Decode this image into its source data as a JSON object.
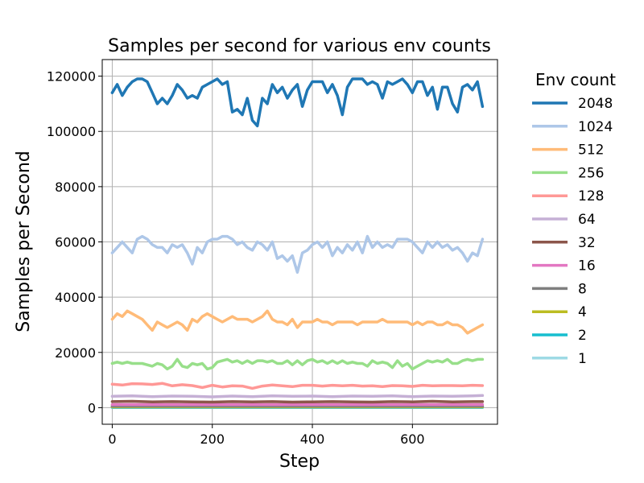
{
  "chart_data": {
    "type": "line",
    "title": "Samples per second for various env counts",
    "xlabel": "Step",
    "ylabel": "Samples per Second",
    "xlim": [
      -20,
      770
    ],
    "ylim": [
      -6000,
      126000
    ],
    "xticks": [
      0,
      200,
      400,
      600
    ],
    "yticks": [
      0,
      20000,
      40000,
      60000,
      80000,
      100000,
      120000
    ],
    "grid": true,
    "legend": {
      "title": "Env count",
      "placement": "outside-right"
    },
    "series": [
      {
        "name": "2048",
        "color": "#1f77b4",
        "x": [
          0,
          10,
          20,
          30,
          40,
          50,
          60,
          70,
          80,
          90,
          100,
          110,
          120,
          130,
          140,
          150,
          160,
          170,
          180,
          190,
          200,
          210,
          220,
          230,
          240,
          250,
          260,
          270,
          280,
          290,
          300,
          310,
          320,
          330,
          340,
          350,
          360,
          370,
          380,
          390,
          400,
          410,
          420,
          430,
          440,
          450,
          460,
          470,
          480,
          490,
          500,
          510,
          520,
          530,
          540,
          550,
          560,
          570,
          580,
          590,
          600,
          610,
          620,
          630,
          640,
          650,
          660,
          670,
          680,
          690,
          700,
          710,
          720,
          730,
          740
        ],
        "y": [
          114000,
          117000,
          113000,
          116000,
          118000,
          119000,
          119000,
          118000,
          114000,
          110000,
          112000,
          110000,
          113000,
          117000,
          115000,
          112000,
          113000,
          112000,
          116000,
          117000,
          118000,
          119000,
          117000,
          118000,
          107000,
          108000,
          106000,
          112000,
          104000,
          102000,
          112000,
          110000,
          117000,
          114000,
          116000,
          112000,
          115000,
          117000,
          109000,
          115000,
          118000,
          118000,
          118000,
          114000,
          117000,
          113000,
          106000,
          116000,
          119000,
          119000,
          119000,
          117000,
          118000,
          117000,
          112000,
          118000,
          117000,
          118000,
          119000,
          117000,
          114000,
          118000,
          118000,
          113000,
          116000,
          108000,
          116000,
          116000,
          110000,
          107000,
          116000,
          117000,
          115000,
          118000,
          109000
        ]
      },
      {
        "name": "1024",
        "color": "#aec7e8",
        "x": [
          0,
          10,
          20,
          30,
          40,
          50,
          60,
          70,
          80,
          90,
          100,
          110,
          120,
          130,
          140,
          150,
          160,
          170,
          180,
          190,
          200,
          210,
          220,
          230,
          240,
          250,
          260,
          270,
          280,
          290,
          300,
          310,
          320,
          330,
          340,
          350,
          360,
          370,
          380,
          390,
          400,
          410,
          420,
          430,
          440,
          450,
          460,
          470,
          480,
          490,
          500,
          510,
          520,
          530,
          540,
          550,
          560,
          570,
          580,
          590,
          600,
          610,
          620,
          630,
          640,
          650,
          660,
          670,
          680,
          690,
          700,
          710,
          720,
          730,
          740
        ],
        "y": [
          56000,
          58000,
          60000,
          58000,
          56000,
          61000,
          62000,
          61000,
          59000,
          58000,
          58000,
          56000,
          59000,
          58000,
          59000,
          56000,
          52000,
          58000,
          56000,
          60000,
          61000,
          61000,
          62000,
          62000,
          61000,
          59000,
          60000,
          58000,
          57000,
          60000,
          59000,
          57000,
          60000,
          54000,
          55000,
          53000,
          55000,
          49000,
          56000,
          57000,
          59000,
          60000,
          58000,
          60000,
          55000,
          58000,
          56000,
          59000,
          57000,
          60000,
          56000,
          62000,
          58000,
          60000,
          58000,
          59000,
          58000,
          61000,
          61000,
          61000,
          60000,
          58000,
          56000,
          60000,
          58000,
          60000,
          58000,
          59000,
          57000,
          58000,
          56000,
          53000,
          56000,
          55000,
          61000
        ]
      },
      {
        "name": "512",
        "color": "#ffbb78",
        "x": [
          0,
          10,
          20,
          30,
          40,
          50,
          60,
          70,
          80,
          90,
          100,
          110,
          120,
          130,
          140,
          150,
          160,
          170,
          180,
          190,
          200,
          210,
          220,
          230,
          240,
          250,
          260,
          270,
          280,
          290,
          300,
          310,
          320,
          330,
          340,
          350,
          360,
          370,
          380,
          390,
          400,
          410,
          420,
          430,
          440,
          450,
          460,
          470,
          480,
          490,
          500,
          510,
          520,
          530,
          540,
          550,
          560,
          570,
          580,
          590,
          600,
          610,
          620,
          630,
          640,
          650,
          660,
          670,
          680,
          690,
          700,
          710,
          720,
          730,
          740
        ],
        "y": [
          32000,
          34000,
          33000,
          35000,
          34000,
          33000,
          32000,
          30000,
          28000,
          31000,
          30000,
          29000,
          30000,
          31000,
          30000,
          28000,
          32000,
          31000,
          33000,
          34000,
          33000,
          32000,
          31000,
          32000,
          33000,
          32000,
          32000,
          32000,
          31000,
          32000,
          33000,
          35000,
          32000,
          31000,
          31000,
          30000,
          32000,
          29000,
          31000,
          31000,
          31000,
          32000,
          31000,
          31000,
          30000,
          31000,
          31000,
          31000,
          31000,
          30000,
          31000,
          31000,
          31000,
          31000,
          32000,
          31000,
          31000,
          31000,
          31000,
          31000,
          30000,
          31000,
          30000,
          31000,
          31000,
          30000,
          30000,
          31000,
          30000,
          30000,
          29000,
          27000,
          28000,
          29000,
          30000
        ]
      },
      {
        "name": "256",
        "color": "#98df8a",
        "x": [
          0,
          10,
          20,
          30,
          40,
          50,
          60,
          70,
          80,
          90,
          100,
          110,
          120,
          130,
          140,
          150,
          160,
          170,
          180,
          190,
          200,
          210,
          220,
          230,
          240,
          250,
          260,
          270,
          280,
          290,
          300,
          310,
          320,
          330,
          340,
          350,
          360,
          370,
          380,
          390,
          400,
          410,
          420,
          430,
          440,
          450,
          460,
          470,
          480,
          490,
          500,
          510,
          520,
          530,
          540,
          550,
          560,
          570,
          580,
          590,
          600,
          610,
          620,
          630,
          640,
          650,
          660,
          670,
          680,
          690,
          700,
          710,
          720,
          730,
          740
        ],
        "y": [
          16000,
          16500,
          16000,
          16500,
          16000,
          16000,
          16000,
          15500,
          15000,
          16000,
          15500,
          14000,
          15000,
          17500,
          15000,
          14500,
          16000,
          15500,
          16000,
          14000,
          14500,
          16500,
          17000,
          17500,
          16500,
          17000,
          16000,
          17000,
          16000,
          17000,
          17000,
          16500,
          17000,
          16000,
          16000,
          17000,
          15500,
          17000,
          15500,
          17000,
          17500,
          16500,
          17000,
          16000,
          17000,
          16000,
          17000,
          16000,
          16500,
          16000,
          16000,
          15000,
          17000,
          16000,
          16500,
          16000,
          14500,
          17000,
          15000,
          16000,
          14000,
          15000,
          16000,
          17000,
          16500,
          17000,
          16500,
          17500,
          16000,
          16000,
          17000,
          17500,
          17000,
          17500,
          17500
        ]
      },
      {
        "name": "128",
        "color": "#ff9896",
        "x": [
          0,
          20,
          40,
          60,
          80,
          100,
          120,
          140,
          160,
          180,
          200,
          220,
          240,
          260,
          280,
          300,
          320,
          340,
          360,
          380,
          400,
          420,
          440,
          460,
          480,
          500,
          520,
          540,
          560,
          580,
          600,
          620,
          640,
          660,
          680,
          700,
          720,
          740
        ],
        "y": [
          8500,
          8200,
          8700,
          8600,
          8400,
          8800,
          7900,
          8300,
          8000,
          7300,
          8100,
          7500,
          7900,
          7800,
          7000,
          7800,
          8200,
          7900,
          7600,
          8100,
          8100,
          7800,
          8100,
          7900,
          8100,
          7800,
          7900,
          7600,
          8000,
          7900,
          7700,
          8100,
          7900,
          8000,
          8000,
          7900,
          8100,
          8000
        ]
      },
      {
        "name": "64",
        "color": "#c5b0d5",
        "x": [
          0,
          40,
          80,
          120,
          160,
          200,
          240,
          280,
          320,
          360,
          400,
          440,
          480,
          520,
          560,
          600,
          640,
          680,
          720,
          740
        ],
        "y": [
          4100,
          4300,
          4000,
          4200,
          4100,
          3900,
          4200,
          4000,
          4300,
          4100,
          4200,
          4000,
          4200,
          4100,
          4300,
          4000,
          4200,
          4100,
          4300,
          4400
        ]
      },
      {
        "name": "32",
        "color": "#8c564b",
        "x": [
          0,
          40,
          80,
          120,
          160,
          200,
          240,
          280,
          320,
          360,
          400,
          440,
          480,
          520,
          560,
          600,
          640,
          680,
          720,
          740
        ],
        "y": [
          2200,
          2300,
          2100,
          2200,
          2100,
          2000,
          2200,
          2100,
          2200,
          2000,
          2100,
          2200,
          2100,
          2000,
          2200,
          2100,
          2300,
          2100,
          2200,
          2200
        ]
      },
      {
        "name": "16",
        "color": "#e377c2",
        "x": [
          0,
          740
        ],
        "y": [
          1100,
          1100
        ]
      },
      {
        "name": "8",
        "color": "#7f7f7f",
        "x": [
          0,
          740
        ],
        "y": [
          550,
          550
        ]
      },
      {
        "name": "4",
        "color": "#bcbd22",
        "x": [
          0,
          740
        ],
        "y": [
          280,
          280
        ]
      },
      {
        "name": "2",
        "color": "#17becf",
        "x": [
          0,
          740
        ],
        "y": [
          140,
          140
        ]
      },
      {
        "name": "1",
        "color": "#9edae5",
        "x": [
          0,
          740
        ],
        "y": [
          70,
          70
        ]
      }
    ]
  }
}
